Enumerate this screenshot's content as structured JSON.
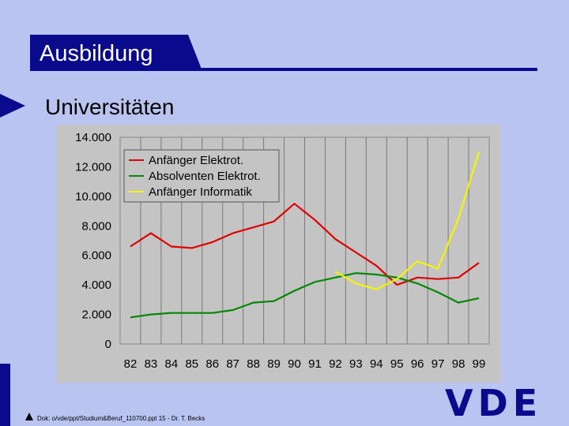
{
  "slide": {
    "title": "Ausbildung",
    "subtitle": "Universitäten",
    "footer": "Dok: o/vde/ppt/Studium&Beruf_110700.ppt 15 - Dr. T. Becks",
    "logo_text": "VDE"
  },
  "colors": {
    "background": "#b9c4f0",
    "brand": "#0a0a8c",
    "chart_panel": "#c4c4c4",
    "red": "#e00000",
    "green": "#008800",
    "yellow": "#f5f500"
  },
  "chart_data": {
    "type": "line",
    "categories": [
      "82",
      "83",
      "84",
      "85",
      "86",
      "87",
      "88",
      "89",
      "90",
      "91",
      "92",
      "93",
      "94",
      "95",
      "96",
      "97",
      "98",
      "99"
    ],
    "y_tick_labels": [
      "0",
      "2.000",
      "4.000",
      "6.000",
      "8.000",
      "10.000",
      "12.000",
      "14.000"
    ],
    "ylim": [
      0,
      14000
    ],
    "grid": "vertical",
    "legend_position": "top-left",
    "series": [
      {
        "name": "Anfänger Elektrot.",
        "color": "#e00000",
        "values": [
          6600,
          7500,
          6600,
          6500,
          6900,
          7500,
          7900,
          8300,
          9500,
          8400,
          7100,
          6200,
          5300,
          4000,
          4500,
          4400,
          4500,
          5500
        ]
      },
      {
        "name": "Absolventen Elektrot.",
        "color": "#008800",
        "values": [
          1800,
          2000,
          2100,
          2100,
          2100,
          2300,
          2800,
          2900,
          3600,
          4200,
          4500,
          4800,
          4700,
          4500,
          4100,
          3500,
          2800,
          3100
        ]
      },
      {
        "name": "Anfänger Informatik",
        "color": "#f5f500",
        "values": [
          null,
          null,
          null,
          null,
          null,
          null,
          null,
          null,
          null,
          null,
          4900,
          4100,
          3700,
          4400,
          5600,
          5100,
          8500,
          13000
        ]
      }
    ]
  }
}
